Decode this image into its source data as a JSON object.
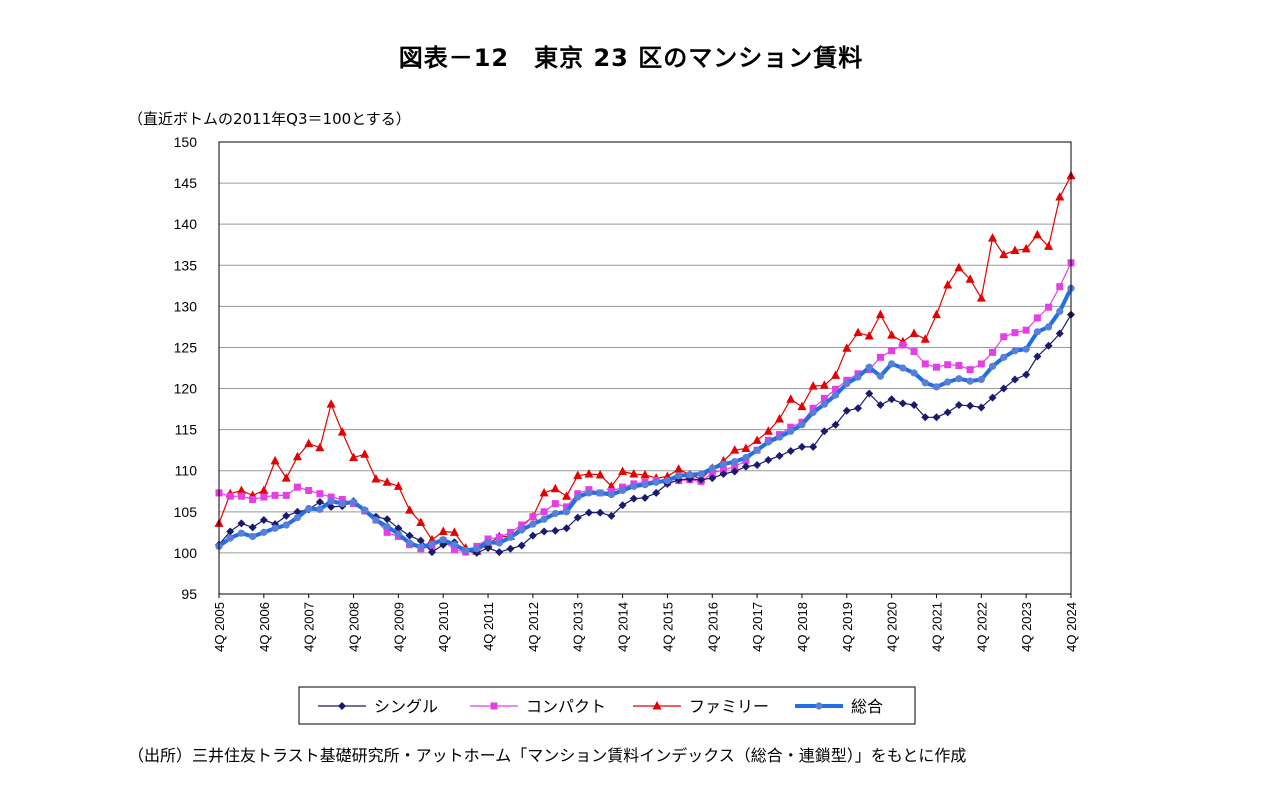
{
  "chart_data": {
    "type": "line",
    "title": "図表－12　東京 23 区のマンション賃料",
    "ylabel": "（直近ボトムの2011年Q3＝100とする）",
    "ylim": [
      95,
      150
    ],
    "yticks": [
      95,
      100,
      105,
      110,
      115,
      120,
      125,
      130,
      135,
      140,
      145,
      150
    ],
    "grid": true,
    "legend_position": "bottom",
    "x_labels": [
      "4Q 2005",
      "4Q 2006",
      "4Q 2007",
      "4Q 2008",
      "4Q 2009",
      "4Q 2010",
      "4Q 2011",
      "4Q 2012",
      "4Q 2013",
      "4Q 2014",
      "4Q 2015",
      "4Q 2016",
      "4Q 2017",
      "4Q 2018",
      "4Q 2019",
      "4Q 2020",
      "4Q 2021",
      "4Q 2022",
      "4Q 2023",
      "4Q 2024"
    ],
    "series": [
      {
        "name": "シングル",
        "color": "#1a1a6e",
        "marker": "diamond",
        "values": [
          101.0,
          102.6,
          103.6,
          103.1,
          104.0,
          103.5,
          104.5,
          105.0,
          105.3,
          106.2,
          105.6,
          105.7,
          106.3,
          105.2,
          104.4,
          104.1,
          103.0,
          102.1,
          101.5,
          100.1,
          101.0,
          101.3,
          100.3,
          100.0,
          100.6,
          100.1,
          100.5,
          100.9,
          102.1,
          102.6,
          102.7,
          103.0,
          104.3,
          104.9,
          104.9,
          104.5,
          105.8,
          106.6,
          106.7,
          107.3,
          108.4,
          108.9,
          109.0,
          108.9,
          109.1,
          109.6,
          109.9,
          110.5,
          110.7,
          111.3,
          111.8,
          112.4,
          112.9,
          112.9,
          114.8,
          115.6,
          117.3,
          117.6,
          119.4,
          118.0,
          118.7,
          118.2,
          118.0,
          116.5,
          116.5,
          117.1,
          118.0,
          117.9,
          117.7,
          118.9,
          120.0,
          121.1,
          121.7,
          123.9,
          125.2,
          126.7,
          129.0
        ]
      },
      {
        "name": "コンパクト",
        "color": "#e63ee6",
        "marker": "square",
        "values": [
          107.3,
          106.9,
          106.9,
          106.5,
          106.8,
          107.0,
          107.0,
          108.0,
          107.6,
          107.2,
          106.8,
          106.5,
          106.0,
          105.1,
          104.0,
          102.5,
          102.0,
          101.0,
          100.5,
          100.8,
          101.5,
          100.4,
          100.1,
          100.8,
          101.7,
          101.9,
          102.5,
          103.4,
          104.4,
          105.0,
          106.0,
          105.6,
          107.2,
          107.7,
          107.3,
          107.5,
          108.0,
          108.4,
          108.6,
          108.8,
          108.6,
          108.8,
          108.9,
          108.7,
          109.7,
          110.1,
          110.5,
          111.2,
          112.5,
          113.7,
          114.4,
          115.3,
          115.9,
          117.6,
          118.8,
          119.9,
          121.0,
          121.8,
          122.3,
          123.8,
          124.6,
          125.3,
          124.5,
          123.0,
          122.6,
          122.9,
          122.8,
          122.3,
          123.0,
          124.4,
          126.3,
          126.8,
          127.1,
          128.6,
          129.9,
          132.4,
          135.3
        ]
      },
      {
        "name": "ファミリー",
        "color": "#e60000",
        "marker": "triangle",
        "values": [
          103.6,
          107.2,
          107.6,
          107.0,
          107.6,
          111.2,
          109.1,
          111.7,
          113.3,
          112.8,
          118.1,
          114.7,
          111.6,
          112.0,
          109.0,
          108.6,
          108.1,
          105.2,
          103.7,
          101.6,
          102.6,
          102.5,
          100.6,
          100.2,
          101.1,
          102.0,
          102.0,
          103.2,
          104.4,
          107.3,
          107.8,
          106.9,
          109.4,
          109.6,
          109.5,
          108.1,
          109.9,
          109.6,
          109.5,
          109.1,
          109.3,
          110.2,
          109.5,
          109.0,
          110.3,
          111.2,
          112.5,
          112.7,
          113.7,
          114.8,
          116.3,
          118.7,
          117.8,
          120.3,
          120.4,
          121.6,
          124.9,
          126.8,
          126.4,
          129.0,
          126.5,
          125.7,
          126.7,
          126.0,
          129.0,
          132.6,
          134.7,
          133.3,
          131.0,
          138.3,
          136.3,
          136.8,
          137.0,
          138.7,
          137.3,
          143.3,
          145.9
        ]
      },
      {
        "name": "総合",
        "color": "#1f6fe6",
        "marker": "circle",
        "values": [
          100.8,
          101.8,
          102.4,
          102.0,
          102.5,
          103.0,
          103.4,
          104.3,
          105.4,
          105.3,
          106.3,
          106.0,
          106.2,
          105.2,
          104.0,
          103.2,
          102.3,
          101.2,
          100.7,
          101.1,
          101.6,
          101.0,
          100.3,
          100.5,
          101.3,
          101.2,
          101.9,
          102.8,
          103.5,
          104.1,
          104.8,
          105.0,
          106.8,
          107.3,
          107.3,
          107.1,
          107.6,
          108.1,
          108.3,
          108.6,
          108.8,
          109.4,
          109.5,
          109.6,
          110.3,
          110.8,
          111.1,
          111.6,
          112.5,
          113.5,
          114.1,
          114.8,
          115.6,
          117.1,
          118.1,
          119.2,
          120.6,
          121.4,
          122.6,
          121.5,
          123.0,
          122.5,
          121.9,
          120.7,
          120.2,
          120.8,
          121.2,
          120.9,
          121.1,
          122.7,
          123.8,
          124.6,
          124.8,
          126.9,
          127.5,
          129.4,
          132.2
        ]
      }
    ]
  },
  "source_note": "（出所）三井住友トラスト基礎研究所・アットホーム「マンション賃料インデックス（総合・連鎖型）」をもとに作成"
}
